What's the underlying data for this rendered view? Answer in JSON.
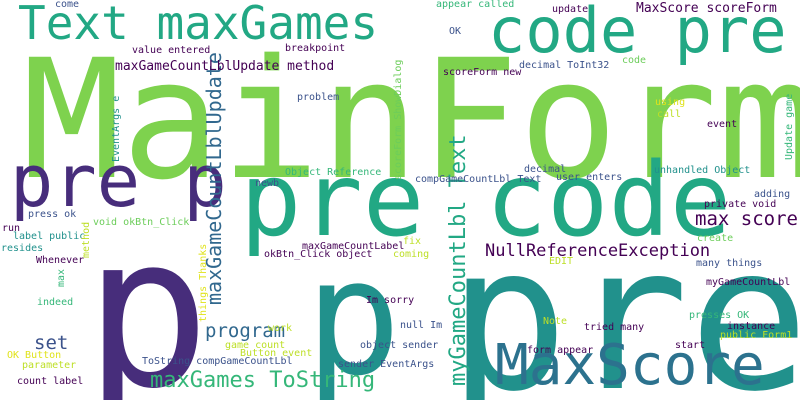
{
  "palette": {
    "green": "#7ed24e",
    "teal": "#21918c",
    "tealgreen": "#22a884",
    "blue": "#2c728e",
    "steel": "#3b528b",
    "indigo": "#472d7b",
    "purple": "#440154",
    "lime": "#bddf26",
    "yellow": "#e0e31b",
    "lightgreen": "#6ccd5a",
    "mint": "#35b779",
    "slate": "#31688e"
  },
  "words": [
    {
      "text": "MainForm",
      "color": "green",
      "weight": 1.0
    },
    {
      "text": "p",
      "color": "indigo",
      "weight": 0.95
    },
    {
      "text": "pre",
      "color": "teal",
      "weight": 0.9
    },
    {
      "text": "p",
      "color": "teal",
      "weight": 0.85
    },
    {
      "text": "pre code",
      "color": "tealgreen",
      "weight": 0.7
    },
    {
      "text": "pre p",
      "color": "indigo",
      "weight": 0.55
    },
    {
      "text": "code pre",
      "color": "tealgreen",
      "weight": 0.5
    },
    {
      "text": "Text maxGames",
      "color": "tealgreen",
      "weight": 0.45
    },
    {
      "text": "MaxScore",
      "color": "blue",
      "weight": 0.4
    },
    {
      "text": "maxGameCountLblUpdate",
      "color": "slate",
      "weight": 0.3
    },
    {
      "text": "myGameCountLbl Text",
      "color": "tealgreen",
      "weight": 0.3
    },
    {
      "text": "maxGames ToString",
      "color": "mint",
      "weight": 0.25
    },
    {
      "text": "NullReferenceException",
      "color": "purple",
      "weight": 0.22
    },
    {
      "text": "max score",
      "color": "purple",
      "weight": 0.2
    },
    {
      "text": "program",
      "color": "slate",
      "weight": 0.2
    },
    {
      "text": "set",
      "color": "steel",
      "weight": 0.2
    },
    {
      "text": "maxGameCountLblUpdate method",
      "color": "purple",
      "weight": 0.15
    },
    {
      "text": "MaxScore scoreForm",
      "color": "purple",
      "weight": 0.15
    },
    {
      "text": "come",
      "color": "steel",
      "weight": 0.05
    },
    {
      "text": "appear called",
      "color": "mint",
      "weight": 0.05
    },
    {
      "text": "update",
      "color": "purple",
      "weight": 0.05
    },
    {
      "text": "OK",
      "color": "steel",
      "weight": 0.05
    },
    {
      "text": "breakpoint",
      "color": "purple",
      "weight": 0.05
    },
    {
      "text": "value entered",
      "color": "purple",
      "weight": 0.05
    },
    {
      "text": "decimal ToInt32",
      "color": "steel",
      "weight": 0.05
    },
    {
      "text": "code",
      "color": "lightgreen",
      "weight": 0.05
    },
    {
      "text": "scoreForm new",
      "color": "purple",
      "weight": 0.05
    },
    {
      "text": "problem",
      "color": "steel",
      "weight": 0.05
    },
    {
      "text": "EventArgs e",
      "color": "teal",
      "weight": 0.05
    },
    {
      "text": "using",
      "color": "yellow",
      "weight": 0.05
    },
    {
      "text": "call",
      "color": "lime",
      "weight": 0.05
    },
    {
      "text": "event",
      "color": "purple",
      "weight": 0.05
    },
    {
      "text": "Update game",
      "color": "mint",
      "weight": 0.05
    },
    {
      "text": "scoreForm ShowDialog",
      "color": "lightgreen",
      "weight": 0.05
    },
    {
      "text": "Object Reference",
      "color": "mint",
      "weight": 0.05
    },
    {
      "text": "decimal",
      "color": "steel",
      "weight": 0.05
    },
    {
      "text": "compGameCountLbl Text",
      "color": "steel",
      "weight": 0.05
    },
    {
      "text": "user enters",
      "color": "steel",
      "weight": 0.05
    },
    {
      "text": "unhandled Object",
      "color": "teal",
      "weight": 0.05
    },
    {
      "text": "newb",
      "color": "steel",
      "weight": 0.05
    },
    {
      "text": "private void",
      "color": "purple",
      "weight": 0.05
    },
    {
      "text": "adding",
      "color": "steel",
      "weight": 0.05
    },
    {
      "text": "run",
      "color": "purple",
      "weight": 0.05
    },
    {
      "text": "label public",
      "color": "teal",
      "weight": 0.05
    },
    {
      "text": "press ok",
      "color": "steel",
      "weight": 0.05
    },
    {
      "text": "void okBtn_Click",
      "color": "lightgreen",
      "weight": 0.05
    },
    {
      "text": "method",
      "color": "lime",
      "weight": 0.05
    },
    {
      "text": "maxGameCountLabel",
      "color": "purple",
      "weight": 0.05
    },
    {
      "text": "fix",
      "color": "lime",
      "weight": 0.05
    },
    {
      "text": "create",
      "color": "lightgreen",
      "weight": 0.05
    },
    {
      "text": "resides",
      "color": "teal",
      "weight": 0.05
    },
    {
      "text": "Whenever",
      "color": "purple",
      "weight": 0.05
    },
    {
      "text": "okBtn_Click object",
      "color": "purple",
      "weight": 0.05
    },
    {
      "text": "coming",
      "color": "lime",
      "weight": 0.05
    },
    {
      "text": "EDIT",
      "color": "lime",
      "weight": 0.05
    },
    {
      "text": "many things",
      "color": "steel",
      "weight": 0.05
    },
    {
      "text": "max",
      "color": "mint",
      "weight": 0.05
    },
    {
      "text": "things Thanks",
      "color": "yellow",
      "weight": 0.05
    },
    {
      "text": "myGameCountLbl",
      "color": "purple",
      "weight": 0.05
    },
    {
      "text": "indeed",
      "color": "mint",
      "weight": 0.05
    },
    {
      "text": "Im sorry",
      "color": "purple",
      "weight": 0.05
    },
    {
      "text": "presses OK",
      "color": "mint",
      "weight": 0.05
    },
    {
      "text": "Note",
      "color": "lime",
      "weight": 0.05
    },
    {
      "text": "tried many",
      "color": "purple",
      "weight": 0.05
    },
    {
      "text": "instance",
      "color": "purple",
      "weight": 0.05
    },
    {
      "text": "null Im",
      "color": "steel",
      "weight": 0.05
    },
    {
      "text": "public Form1",
      "color": "lime",
      "weight": 0.05
    },
    {
      "text": "work",
      "color": "lime",
      "weight": 0.05
    },
    {
      "text": "start",
      "color": "purple",
      "weight": 0.05
    },
    {
      "text": "object sender",
      "color": "steel",
      "weight": 0.05
    },
    {
      "text": "OK Button",
      "color": "yellow",
      "weight": 0.05
    },
    {
      "text": "game count",
      "color": "lime",
      "weight": 0.05
    },
    {
      "text": "Button event",
      "color": "lime",
      "weight": 0.05
    },
    {
      "text": "form appear",
      "color": "purple",
      "weight": 0.05
    },
    {
      "text": "parameter",
      "color": "lime",
      "weight": 0.05
    },
    {
      "text": "ToString compGameCountLbl",
      "color": "steel",
      "weight": 0.05
    },
    {
      "text": "sender EventArgs",
      "color": "steel",
      "weight": 0.05
    },
    {
      "text": "count label",
      "color": "purple",
      "weight": 0.05
    }
  ]
}
